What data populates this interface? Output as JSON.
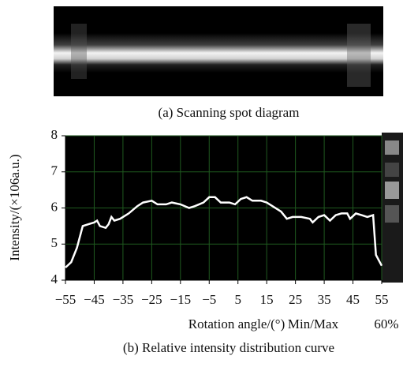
{
  "panel_a": {
    "caption": "(a) Scanning spot diagram"
  },
  "chart_data": {
    "type": "line",
    "caption": "(b) Relative intensity distribution curve",
    "x_label": "Rotation angle/(°)",
    "y_label": "Intensity/(×106a.u.)",
    "annotations": [
      "Min/Max",
      "60%"
    ],
    "xlim": [
      -55,
      55
    ],
    "xticks": [
      {
        "value": -55,
        "label": "−55"
      },
      {
        "value": -45,
        "label": "−45"
      },
      {
        "value": -35,
        "label": "−35"
      },
      {
        "value": -25,
        "label": "−25"
      },
      {
        "value": -15,
        "label": "−15"
      },
      {
        "value": -5,
        "label": "−5"
      },
      5,
      15,
      25,
      35,
      45,
      55
    ],
    "ylim": [
      4,
      8
    ],
    "yticks": [
      4,
      5,
      6,
      7,
      8
    ],
    "grid": true,
    "color": "#ffffff",
    "x": [
      -55,
      -53,
      -51,
      -49,
      -47,
      -45,
      -44,
      -43,
      -41,
      -40,
      -39,
      -38,
      -36,
      -33,
      -30,
      -28,
      -25,
      -23,
      -20,
      -18,
      -15,
      -12,
      -10,
      -7,
      -5,
      -3,
      -1,
      2,
      4,
      6,
      8,
      10,
      13,
      15,
      17,
      20,
      22,
      24,
      27,
      30,
      31,
      33,
      35,
      37,
      39,
      41,
      43,
      44,
      46,
      48,
      50,
      52,
      53,
      55
    ],
    "values": [
      4.35,
      4.5,
      4.9,
      5.5,
      5.55,
      5.6,
      5.65,
      5.5,
      5.45,
      5.55,
      5.75,
      5.65,
      5.7,
      5.85,
      6.05,
      6.15,
      6.2,
      6.1,
      6.1,
      6.15,
      6.1,
      6.0,
      6.05,
      6.15,
      6.3,
      6.3,
      6.15,
      6.15,
      6.1,
      6.25,
      6.3,
      6.2,
      6.2,
      6.15,
      6.05,
      5.9,
      5.7,
      5.75,
      5.75,
      5.7,
      5.6,
      5.75,
      5.8,
      5.65,
      5.8,
      5.85,
      5.85,
      5.7,
      5.85,
      5.8,
      5.75,
      5.8,
      4.7,
      4.4
    ]
  }
}
